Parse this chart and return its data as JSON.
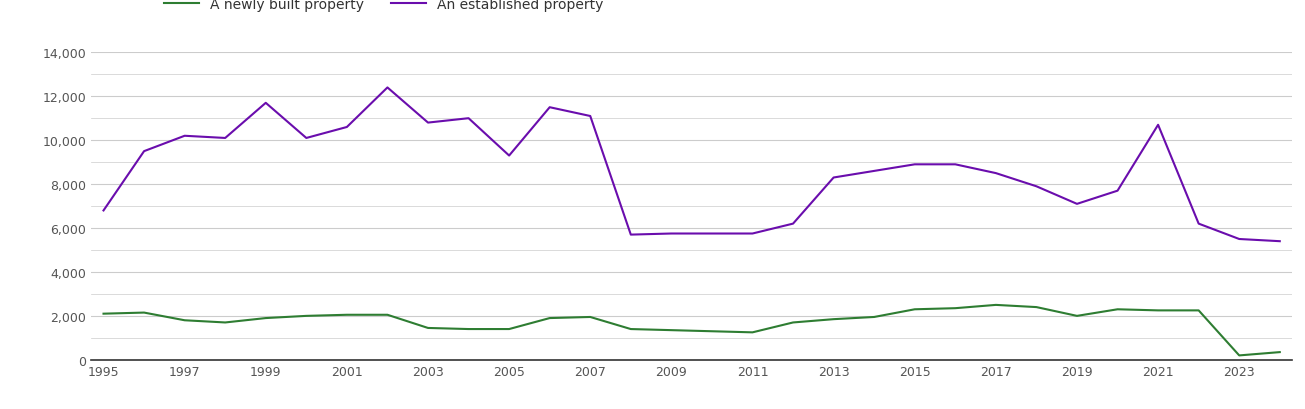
{
  "years": [
    1995,
    1996,
    1997,
    1998,
    1999,
    2000,
    2001,
    2002,
    2003,
    2004,
    2005,
    2006,
    2007,
    2008,
    2009,
    2010,
    2011,
    2012,
    2013,
    2014,
    2015,
    2016,
    2017,
    2018,
    2019,
    2020,
    2021,
    2022,
    2023,
    2024
  ],
  "new_homes": [
    2100,
    2150,
    1800,
    1700,
    1900,
    2000,
    2050,
    2050,
    1450,
    1400,
    1400,
    1900,
    1950,
    1400,
    1350,
    1300,
    1250,
    1700,
    1850,
    1950,
    2300,
    2350,
    2500,
    2400,
    2000,
    2300,
    2250,
    2250,
    200,
    350
  ],
  "established_homes": [
    6800,
    9500,
    10200,
    10100,
    11700,
    10100,
    10600,
    12400,
    10800,
    11000,
    9300,
    11500,
    11100,
    5700,
    5750,
    5750,
    5750,
    6200,
    8300,
    8600,
    8900,
    8900,
    8500,
    7900,
    7100,
    7700,
    10700,
    6200,
    5500,
    5400
  ],
  "new_color": "#2e7d32",
  "established_color": "#6a0dad",
  "legend_new": "A newly built property",
  "legend_established": "An established property",
  "ylim": [
    0,
    14000
  ],
  "yticks": [
    0,
    2000,
    4000,
    6000,
    8000,
    10000,
    12000,
    14000
  ],
  "background_color": "#ffffff",
  "grid_color": "#cccccc",
  "tick_label_color": "#555555",
  "figsize": [
    13.05,
    4.1
  ],
  "dpi": 100
}
